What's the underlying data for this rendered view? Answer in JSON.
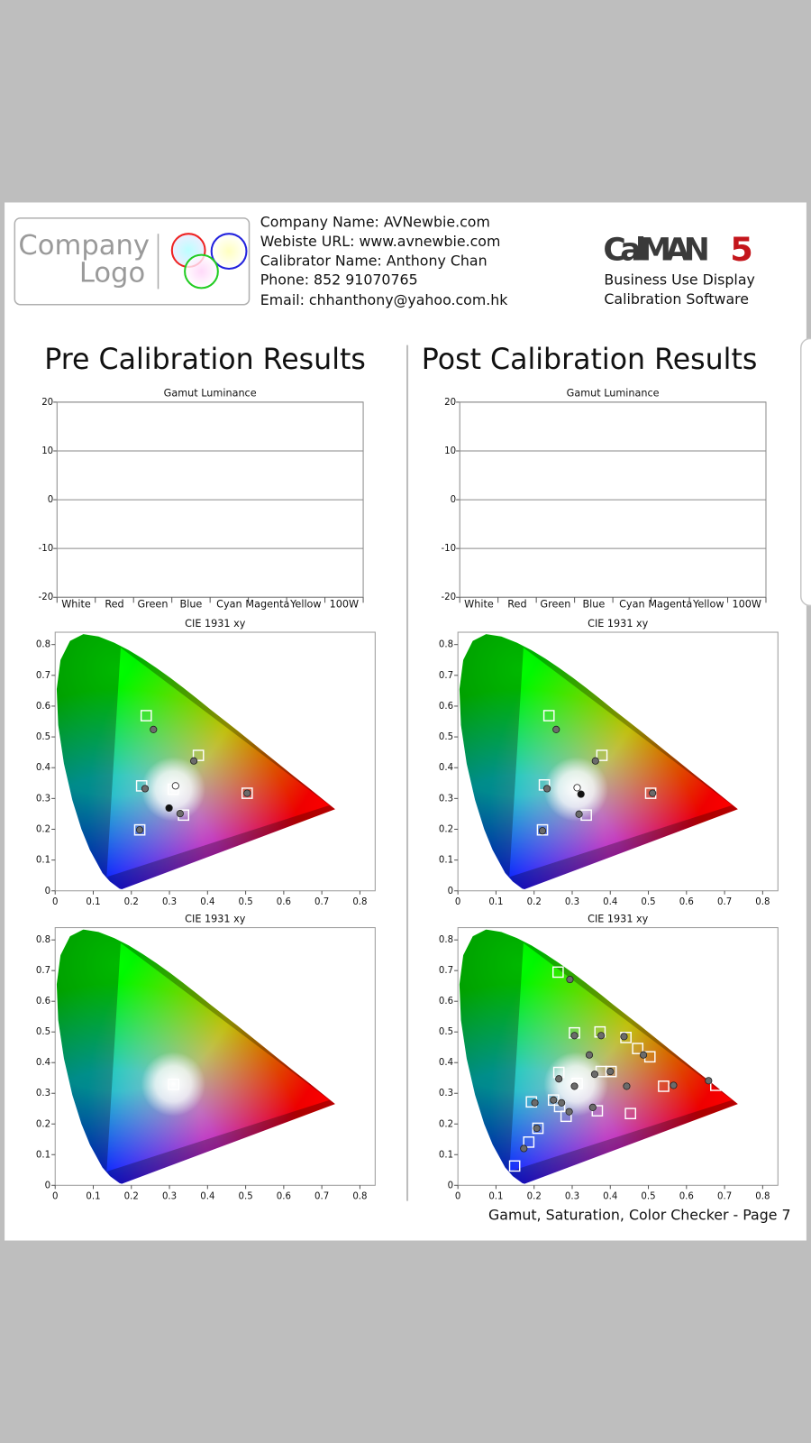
{
  "header": {
    "logo": [
      "Company",
      "Logo"
    ],
    "contact": [
      "Company Name: AVNewbie.com",
      "Webiste URL: www.avnewbie.com",
      "Calibrator Name: Anthony Chan",
      "Phone: 852 91070765",
      "Email: chhanthony@yahoo.com.hk"
    ],
    "brand": {
      "name": "CalMAN",
      "version": "5"
    },
    "tagline": [
      "Business Use Display",
      "Calibration Software"
    ]
  },
  "columns": [
    {
      "title": "Pre Calibration Results",
      "charts": [
        {
          "type": "bar",
          "title": "Gamut Luminance",
          "categories": [
            "White",
            "Red",
            "Green",
            "Blue",
            "Cyan",
            "Magenta",
            "Yellow",
            "100W"
          ],
          "ylim": [
            -20,
            20
          ],
          "yticks": [
            -20,
            -10,
            0,
            10,
            20
          ],
          "grid": true
        },
        {
          "type": "scatter",
          "title": "CIE 1931 xy",
          "xlim": [
            0,
            0.84
          ],
          "ylim": [
            0,
            0.84
          ],
          "xticks": [
            0,
            0.1,
            0.2,
            0.3,
            0.4,
            0.5,
            0.6,
            0.7,
            0.8
          ],
          "yticks": [
            0,
            0.1,
            0.2,
            0.3,
            0.4,
            0.5,
            0.6,
            0.7,
            0.8
          ],
          "series": [
            {
              "marker": "square",
              "color": "#ffffff",
              "x": [
                0.239,
                0.376,
                0.504,
                0.227,
                0.31,
                0.222,
                0.337
              ],
              "y": [
                0.569,
                0.44,
                0.317,
                0.341,
                0.33,
                0.198,
                0.246
              ]
            },
            {
              "marker": "circle",
              "color": "#6b6b6b",
              "x": [
                0.258,
                0.364,
                0.504,
                0.236,
                0.328,
                0.222
              ],
              "y": [
                0.524,
                0.422,
                0.317,
                0.332,
                0.251,
                0.198
              ]
            },
            {
              "marker": "circle",
              "color": "#ffffff",
              "x": [
                0.316
              ],
              "y": [
                0.341
              ]
            },
            {
              "marker": "circle",
              "color": "#111111",
              "x": [
                0.299
              ],
              "y": [
                0.269
              ]
            }
          ]
        },
        {
          "type": "scatter",
          "title": "CIE 1931 xy",
          "xlim": [
            0,
            0.84
          ],
          "ylim": [
            0,
            0.84
          ],
          "xticks": [
            0,
            0.1,
            0.2,
            0.3,
            0.4,
            0.5,
            0.6,
            0.7,
            0.8
          ],
          "yticks": [
            0,
            0.1,
            0.2,
            0.3,
            0.4,
            0.5,
            0.6,
            0.7,
            0.8
          ],
          "series": [
            {
              "marker": "square",
              "color": "#ffffff",
              "x": [
                0.311
              ],
              "y": [
                0.329
              ]
            }
          ]
        }
      ]
    },
    {
      "title": "Post Calibration Results",
      "charts": [
        {
          "type": "bar",
          "title": "Gamut Luminance",
          "categories": [
            "White",
            "Red",
            "Green",
            "Blue",
            "Cyan",
            "Magenta",
            "Yellow",
            "100W"
          ],
          "ylim": [
            -20,
            20
          ],
          "yticks": [
            -20,
            -10,
            0,
            10,
            20
          ],
          "grid": true
        },
        {
          "type": "scatter",
          "title": "CIE 1931 xy",
          "xlim": [
            0,
            0.84
          ],
          "ylim": [
            0,
            0.84
          ],
          "xticks": [
            0,
            0.1,
            0.2,
            0.3,
            0.4,
            0.5,
            0.6,
            0.7,
            0.8
          ],
          "yticks": [
            0,
            0.1,
            0.2,
            0.3,
            0.4,
            0.5,
            0.6,
            0.7,
            0.8
          ],
          "series": [
            {
              "marker": "square",
              "color": "#ffffff",
              "x": [
                0.239,
                0.378,
                0.506,
                0.227,
                0.222,
                0.337
              ],
              "y": [
                0.569,
                0.44,
                0.317,
                0.344,
                0.198,
                0.246
              ]
            },
            {
              "marker": "circle",
              "color": "#6b6b6b",
              "x": [
                0.258,
                0.361,
                0.511,
                0.234,
                0.318,
                0.222
              ],
              "y": [
                0.524,
                0.422,
                0.317,
                0.332,
                0.249,
                0.195
              ]
            },
            {
              "marker": "circle",
              "color": "#ffffff",
              "x": [
                0.313
              ],
              "y": [
                0.335
              ]
            },
            {
              "marker": "circle",
              "color": "#111111",
              "x": [
                0.323
              ],
              "y": [
                0.314
              ]
            }
          ]
        },
        {
          "type": "scatter",
          "title": "CIE 1931 xy",
          "xlim": [
            0,
            0.84
          ],
          "ylim": [
            0,
            0.84
          ],
          "xticks": [
            0,
            0.1,
            0.2,
            0.3,
            0.4,
            0.5,
            0.6,
            0.7,
            0.8
          ],
          "yticks": [
            0,
            0.1,
            0.2,
            0.3,
            0.4,
            0.5,
            0.6,
            0.7,
            0.8
          ],
          "series": [
            {
              "marker": "square",
              "color": "#ffffff",
              "x": [
                0.263,
                0.306,
                0.373,
                0.441,
                0.472,
                0.504,
                0.265,
                0.313,
                0.376,
                0.402,
                0.193,
                0.251,
                0.267,
                0.284,
                0.366,
                0.453,
                0.54,
                0.677,
                0.21,
                0.186,
                0.149
              ],
              "y": [
                0.695,
                0.497,
                0.5,
                0.482,
                0.446,
                0.419,
                0.368,
                0.332,
                0.371,
                0.371,
                0.272,
                0.278,
                0.257,
                0.225,
                0.243,
                0.234,
                0.323,
                0.326,
                0.186,
                0.141,
                0.063
              ]
            },
            {
              "marker": "circle",
              "color": "#6b6b6b",
              "x": [
                0.294,
                0.306,
                0.376,
                0.436,
                0.487,
                0.345,
                0.4,
                0.359,
                0.265,
                0.306,
                0.202,
                0.251,
                0.272,
                0.292,
                0.354,
                0.443,
                0.566,
                0.658,
                0.207,
                0.173
              ],
              "y": [
                0.671,
                0.488,
                0.488,
                0.485,
                0.425,
                0.425,
                0.371,
                0.362,
                0.347,
                0.323,
                0.269,
                0.278,
                0.269,
                0.24,
                0.254,
                0.323,
                0.326,
                0.341,
                0.186,
                0.12
              ]
            }
          ]
        }
      ]
    }
  ],
  "footer": "Gamut, Saturation, Color Checker - Page 7"
}
